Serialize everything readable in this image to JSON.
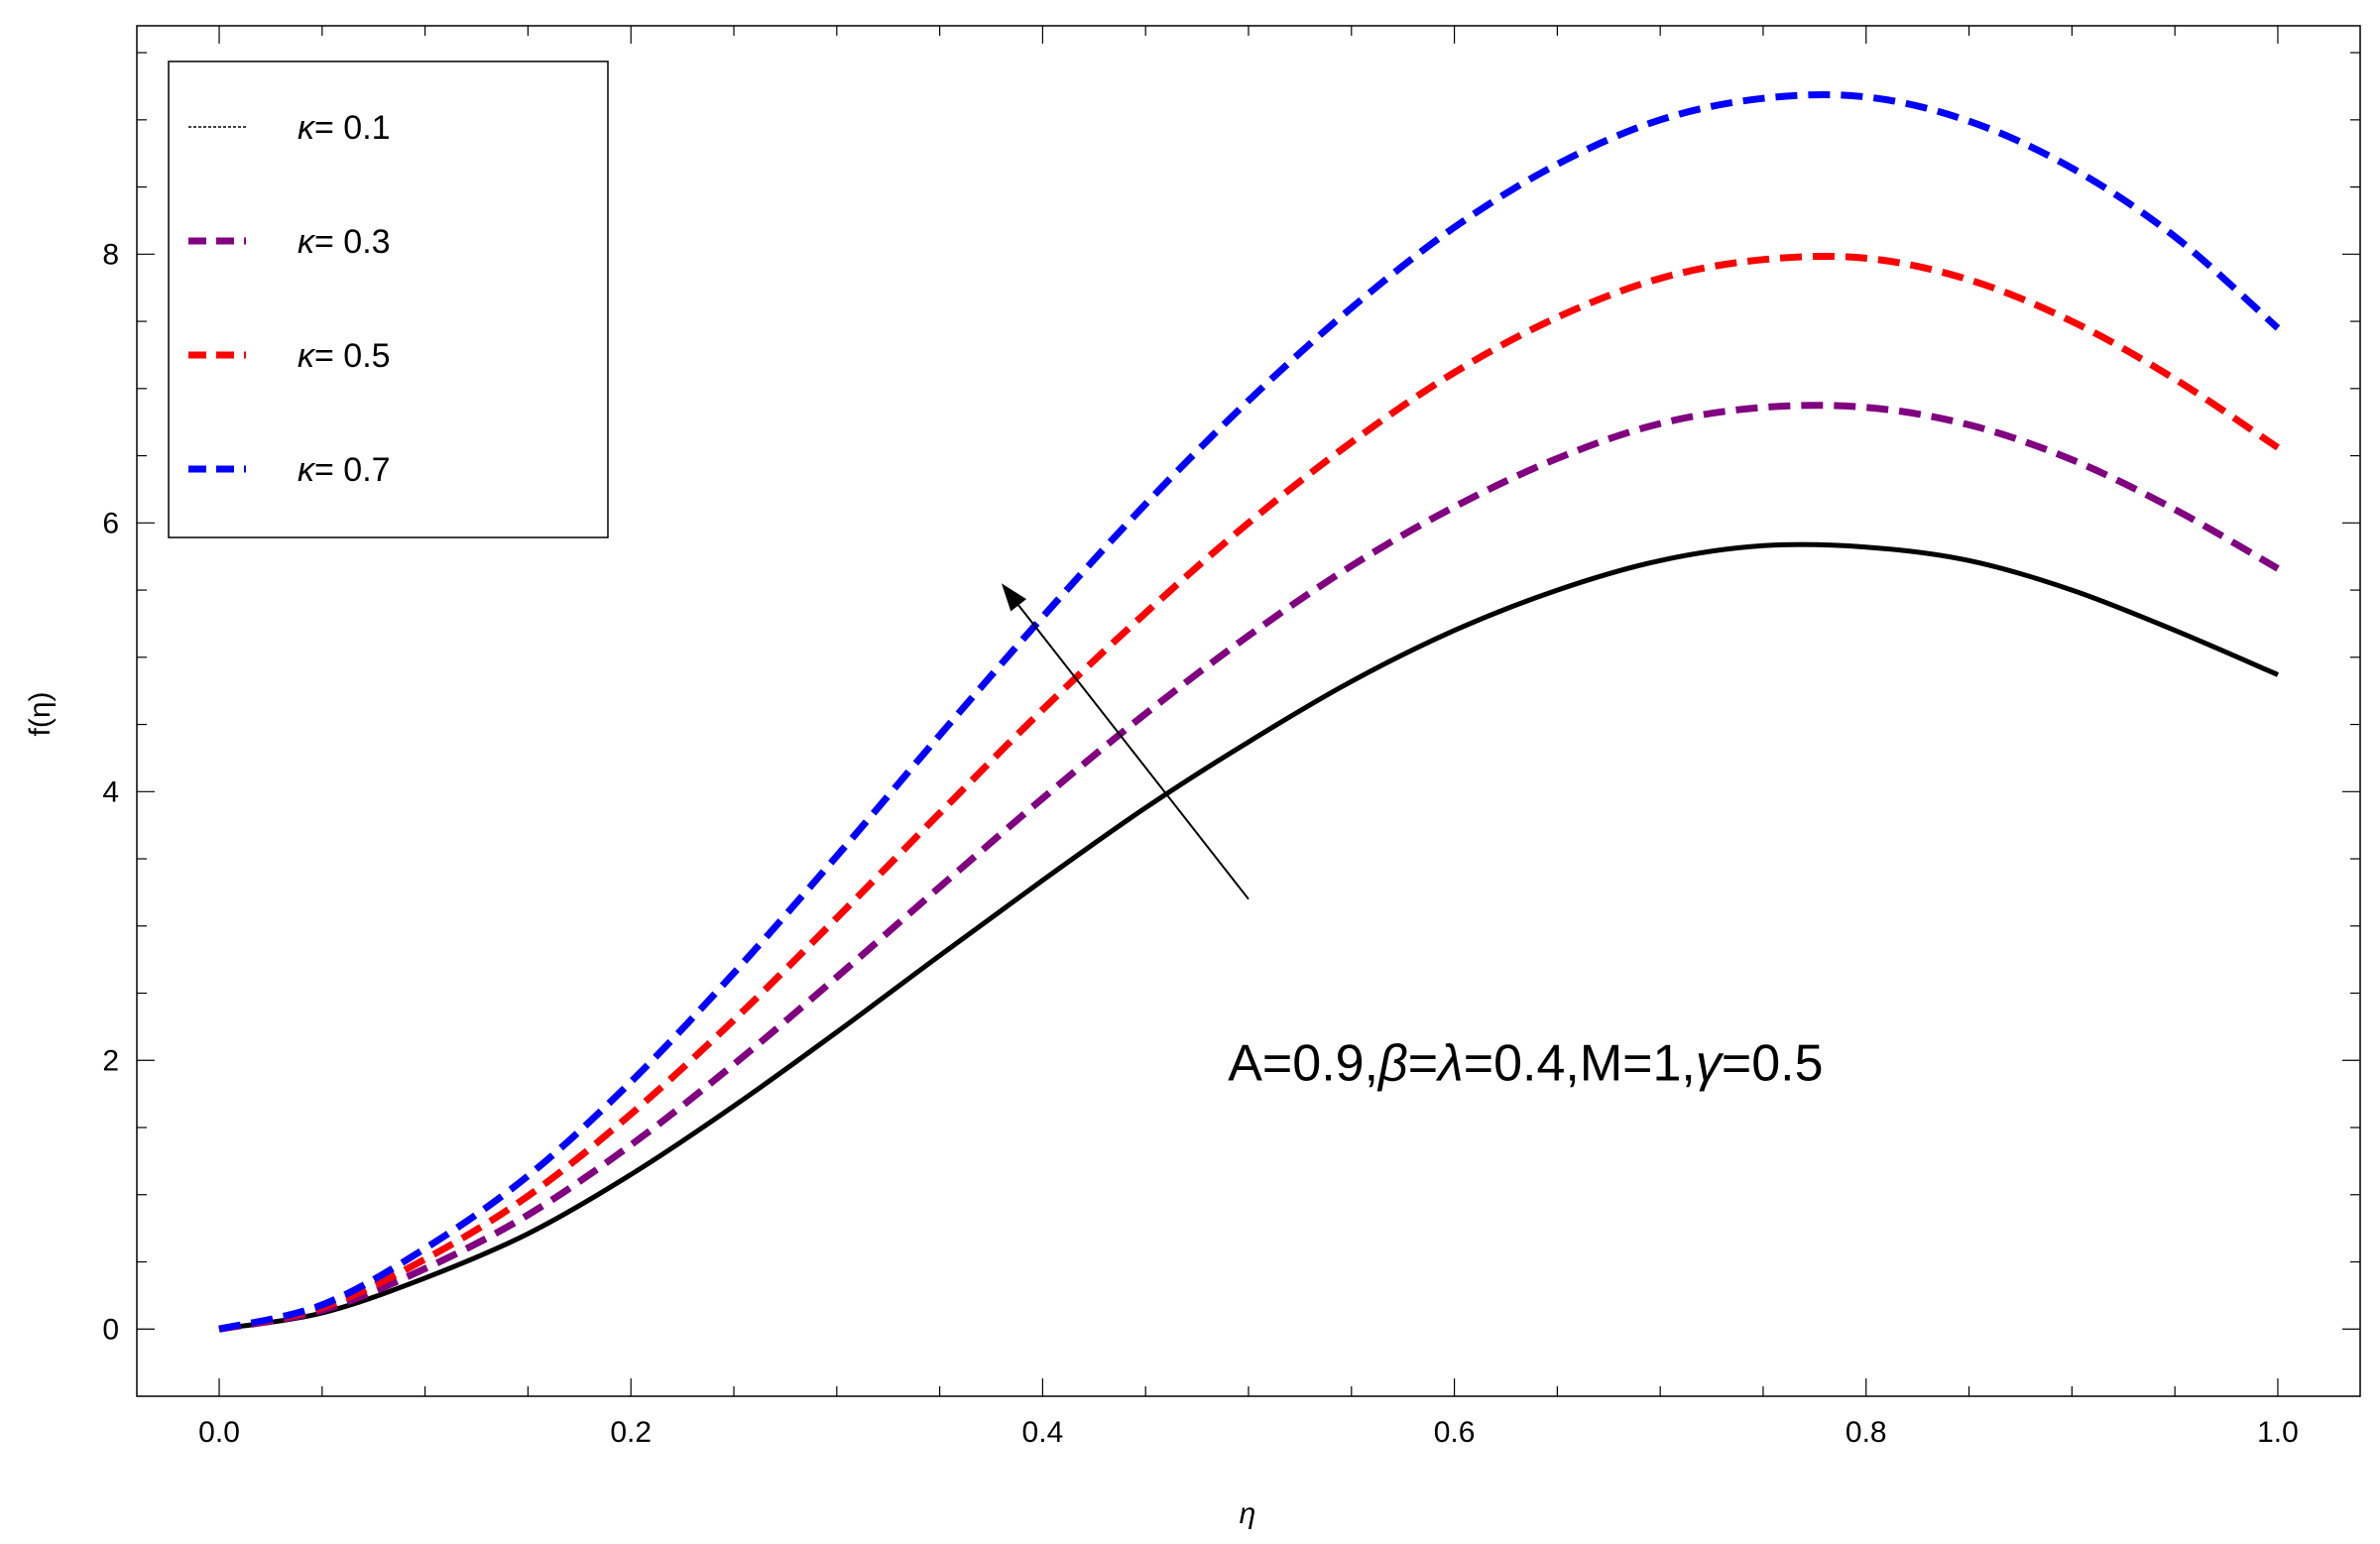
{
  "chart_data": {
    "type": "line",
    "title": "",
    "xlabel": "η",
    "ylabel": "f(η)",
    "xlim": [
      -0.04,
      1.04
    ],
    "ylim": [
      -0.5,
      9.7
    ],
    "xticks": [
      0.0,
      0.2,
      0.4,
      0.6,
      0.8,
      1.0
    ],
    "xtick_labels": [
      "0.0",
      "0.2",
      "0.4",
      "0.6",
      "0.8",
      "1.0"
    ],
    "yticks": [
      0,
      2,
      4,
      6,
      8
    ],
    "ytick_labels": [
      "0",
      "2",
      "4",
      "6",
      "8"
    ],
    "grid": false,
    "legend_position": "top-left",
    "x": [
      0.0,
      0.05,
      0.1,
      0.15,
      0.2,
      0.25,
      0.3,
      0.35,
      0.4,
      0.45,
      0.5,
      0.55,
      0.6,
      0.65,
      0.7,
      0.75,
      0.8,
      0.85,
      0.9,
      0.95,
      1.0
    ],
    "series": [
      {
        "name_prefix": "κ",
        "name_value": "= 0.1",
        "color": "#000000",
        "dash": "solid",
        "values": [
          0.0,
          0.12,
          0.38,
          0.71,
          1.15,
          1.66,
          2.21,
          2.78,
          3.34,
          3.88,
          4.37,
          4.82,
          5.2,
          5.5,
          5.72,
          5.83,
          5.82,
          5.72,
          5.5,
          5.2,
          4.87
        ]
      },
      {
        "name_prefix": "κ",
        "name_value": "= 0.3",
        "color": "#800080",
        "dash": "dashed",
        "values": [
          0.0,
          0.14,
          0.45,
          0.85,
          1.37,
          1.97,
          2.62,
          3.29,
          3.95,
          4.58,
          5.16,
          5.68,
          6.12,
          6.48,
          6.74,
          6.86,
          6.86,
          6.73,
          6.47,
          6.1,
          5.66
        ]
      },
      {
        "name_prefix": "κ",
        "name_value": "= 0.5",
        "color": "#ff0000",
        "dash": "dashed",
        "values": [
          0.0,
          0.16,
          0.52,
          0.99,
          1.6,
          2.3,
          3.06,
          3.84,
          4.61,
          5.33,
          6.0,
          6.6,
          7.12,
          7.53,
          7.82,
          7.96,
          7.97,
          7.81,
          7.5,
          7.07,
          6.56
        ]
      },
      {
        "name_prefix": "κ",
        "name_value": "= 0.7",
        "color": "#0000ff",
        "dash": "dashed",
        "values": [
          0.0,
          0.18,
          0.6,
          1.14,
          1.84,
          2.65,
          3.52,
          4.42,
          5.3,
          6.14,
          6.91,
          7.6,
          8.2,
          8.67,
          9.0,
          9.16,
          9.17,
          8.99,
          8.64,
          8.13,
          7.45
        ]
      }
    ],
    "annotation": {
      "parts": [
        "A=0.9,",
        "β",
        "=",
        "λ",
        "=0.4,M=1,",
        "γ",
        "=0.5"
      ],
      "x": 0.49,
      "y": 1.85
    },
    "arrow": {
      "from": [
        0.5,
        3.2
      ],
      "to": [
        0.38,
        5.55
      ]
    }
  }
}
